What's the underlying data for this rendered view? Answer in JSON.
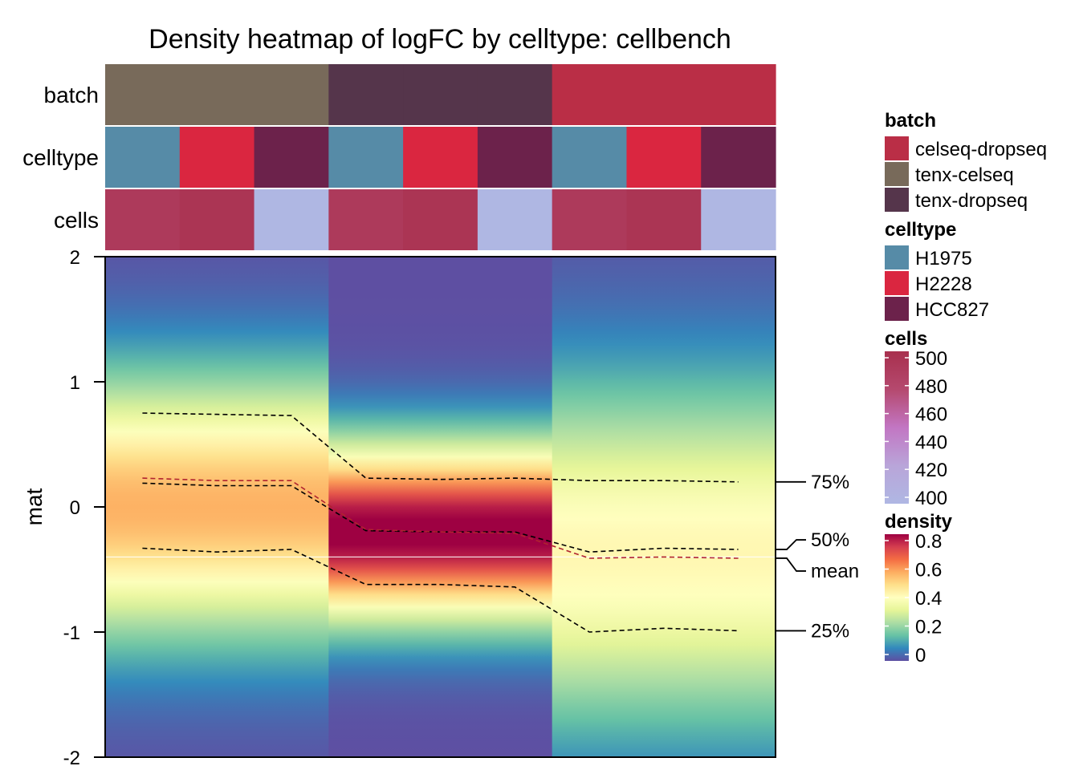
{
  "chart_data": {
    "type": "heatmap",
    "title": "Density heatmap of logFC by celltype: cellbench",
    "ylabel": "mat",
    "ylim": [
      -2,
      2
    ],
    "y_ticks": [
      "2",
      "1",
      "0",
      "-1",
      "-2"
    ],
    "annotation_rows": [
      "batch",
      "celltype",
      "cells"
    ],
    "columns": [
      {
        "batch": "tenx-celseq",
        "celltype": "H1975",
        "cells": 490
      },
      {
        "batch": "tenx-celseq",
        "celltype": "H2228",
        "cells": 495
      },
      {
        "batch": "tenx-celseq",
        "celltype": "HCC827",
        "cells": 400
      },
      {
        "batch": "tenx-dropseq",
        "celltype": "H1975",
        "cells": 490
      },
      {
        "batch": "tenx-dropseq",
        "celltype": "H2228",
        "cells": 495
      },
      {
        "batch": "tenx-dropseq",
        "celltype": "HCC827",
        "cells": 400
      },
      {
        "batch": "celseq-dropseq",
        "celltype": "H1975",
        "cells": 490
      },
      {
        "batch": "celseq-dropseq",
        "celltype": "H2228",
        "cells": 495
      },
      {
        "batch": "celseq-dropseq",
        "celltype": "HCC827",
        "cells": 400
      }
    ],
    "density_profiles": [
      {
        "mean": 0.0,
        "sd": 0.72
      },
      {
        "mean": 0.0,
        "sd": 0.72
      },
      {
        "mean": 0.0,
        "sd": 0.72
      },
      {
        "mean": -0.2,
        "sd": 0.48
      },
      {
        "mean": -0.2,
        "sd": 0.48
      },
      {
        "mean": -0.2,
        "sd": 0.48
      },
      {
        "mean": -0.38,
        "sd": 0.95
      },
      {
        "mean": -0.38,
        "sd": 0.95
      },
      {
        "mean": -0.38,
        "sd": 0.95
      }
    ],
    "quantiles": {
      "q75": [
        0.75,
        0.74,
        0.73,
        0.23,
        0.22,
        0.23,
        0.21,
        0.21,
        0.2
      ],
      "q50": [
        0.19,
        0.17,
        0.17,
        -0.19,
        -0.2,
        -0.2,
        -0.36,
        -0.33,
        -0.34
      ],
      "mean": [
        0.23,
        0.21,
        0.21,
        -0.18,
        -0.2,
        -0.21,
        -0.41,
        -0.4,
        -0.41
      ],
      "q25": [
        -0.33,
        -0.36,
        -0.34,
        -0.62,
        -0.62,
        -0.64,
        -1.0,
        -0.97,
        -0.99
      ]
    },
    "quantile_labels": {
      "q75": "75%",
      "q50": "50%",
      "mean": "mean",
      "q25": "25%"
    },
    "white_line_y": -0.4,
    "legend": {
      "batch": {
        "title": "batch",
        "items": [
          {
            "label": "celseq-dropseq",
            "color": "#BA2E46"
          },
          {
            "label": "tenx-celseq",
            "color": "#786A5A"
          },
          {
            "label": "tenx-dropseq",
            "color": "#55354B"
          }
        ]
      },
      "celltype": {
        "title": "celltype",
        "items": [
          {
            "label": "H1975",
            "color": "#568BA7"
          },
          {
            "label": "H2228",
            "color": "#DA2640"
          },
          {
            "label": "HCC827",
            "color": "#6C224B"
          }
        ]
      },
      "cells": {
        "title": "cells",
        "ticks": [
          "500",
          "480",
          "460",
          "440",
          "420",
          "400"
        ],
        "range": [
          400,
          500
        ],
        "colors": [
          "#AFB7E3",
          "#B9A5D9",
          "#C276C3",
          "#B5496E",
          "#A8304E"
        ]
      },
      "density": {
        "title": "density",
        "ticks": [
          "0.8",
          "0.6",
          "0.4",
          "0.2",
          "0"
        ],
        "range": [
          0,
          0.8
        ]
      }
    },
    "colors": {
      "cells_high": "#A8304E",
      "cells_mid": "#AC3A62",
      "cells_low": "#AFB7E3"
    },
    "legend_placement": "right",
    "grid": false
  }
}
